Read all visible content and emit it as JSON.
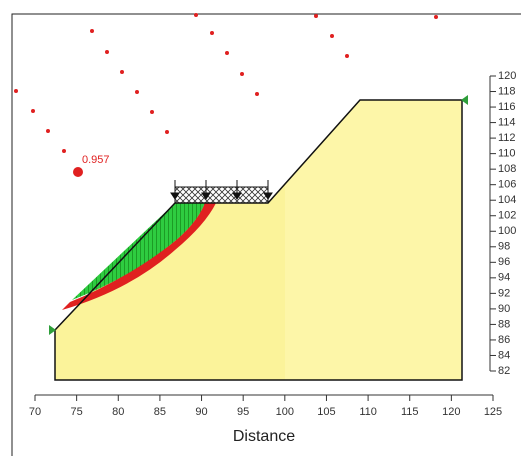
{
  "chart_data": {
    "type": "slope-stability",
    "x_label": "Distance",
    "xlim": [
      70,
      125
    ],
    "xticks": [
      70,
      75,
      80,
      85,
      90,
      95,
      100,
      105,
      110,
      115,
      120,
      125
    ],
    "ylim": [
      82,
      120
    ],
    "yticks": [
      82,
      84,
      86,
      88,
      90,
      92,
      94,
      96,
      98,
      100,
      102,
      104,
      106,
      108,
      110,
      112,
      114,
      116,
      118,
      120
    ],
    "factor_of_safety": 0.957
  }
}
